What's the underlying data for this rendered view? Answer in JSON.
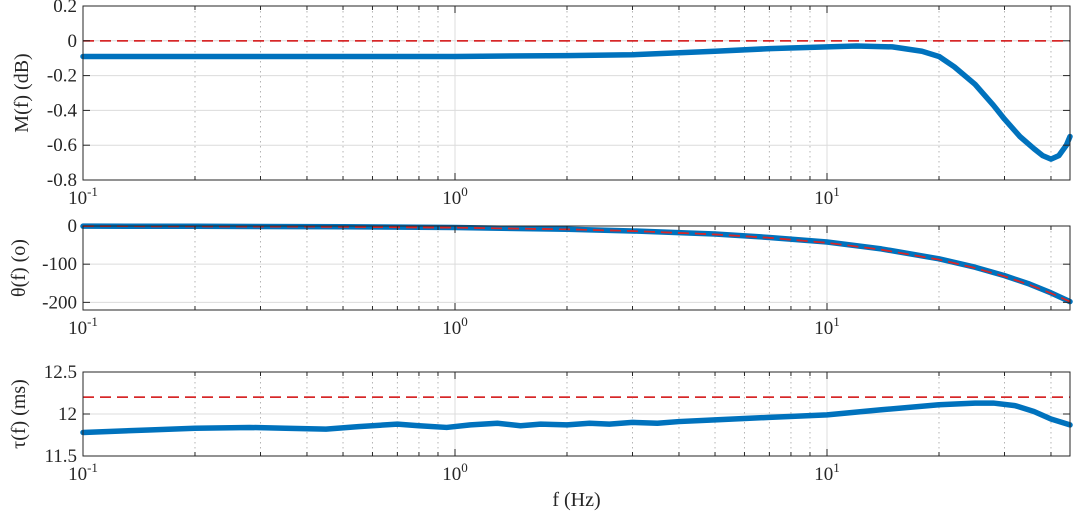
{
  "chart_data": [
    {
      "type": "line",
      "xscale": "log",
      "xlim": [
        0.1,
        45
      ],
      "ylim": [
        -0.8,
        0.2
      ],
      "ylabel": "M(f) (dB)",
      "xlabel": "",
      "grid": true,
      "x_tick_labels": [
        {
          "base": "10",
          "exp": "-1",
          "value": 0.1
        },
        {
          "base": "10",
          "exp": "0",
          "value": 1
        },
        {
          "base": "10",
          "exp": "1",
          "value": 10
        }
      ],
      "y_ticks": [
        0.2,
        0,
        -0.2,
        -0.4,
        -0.6,
        -0.8
      ],
      "y_tick_labels": [
        "0.2",
        "0",
        "-0.2",
        "-0.4",
        "-0.6",
        "-0.8"
      ],
      "series": [
        {
          "role": "measured",
          "color": "#0072BD",
          "style": "solid",
          "x": [
            0.1,
            0.2,
            0.5,
            1,
            2,
            3,
            5,
            7,
            10,
            12,
            15,
            18,
            20,
            22,
            25,
            28,
            30,
            33,
            36,
            38,
            40,
            42,
            44,
            45
          ],
          "y": [
            -0.09,
            -0.09,
            -0.09,
            -0.09,
            -0.085,
            -0.08,
            -0.06,
            -0.045,
            -0.035,
            -0.03,
            -0.035,
            -0.06,
            -0.09,
            -0.15,
            -0.25,
            -0.37,
            -0.45,
            -0.55,
            -0.62,
            -0.66,
            -0.68,
            -0.66,
            -0.6,
            -0.55
          ]
        },
        {
          "role": "reference",
          "color": "#D62728",
          "style": "dashed",
          "x": [
            0.1,
            45
          ],
          "y": [
            0,
            0
          ]
        }
      ]
    },
    {
      "type": "line",
      "xscale": "log",
      "xlim": [
        0.1,
        45
      ],
      "ylim": [
        -220,
        0
      ],
      "ylabel": "θ(f) (o)",
      "xlabel": "",
      "grid": true,
      "x_tick_labels": [
        {
          "base": "10",
          "exp": "-1",
          "value": 0.1
        },
        {
          "base": "10",
          "exp": "0",
          "value": 1
        },
        {
          "base": "10",
          "exp": "1",
          "value": 10
        }
      ],
      "y_ticks": [
        0,
        -100,
        -200
      ],
      "y_tick_labels": [
        "0",
        "-100",
        "-200"
      ],
      "series": [
        {
          "role": "measured",
          "color": "#0072BD",
          "style": "solid",
          "x": [
            0.1,
            0.2,
            0.5,
            1,
            2,
            3,
            5,
            7,
            10,
            14,
            20,
            25,
            30,
            35,
            40,
            45
          ],
          "y": [
            -0.4,
            -0.8,
            -2,
            -4,
            -8.5,
            -13,
            -21,
            -30,
            -42,
            -60,
            -86,
            -108,
            -130,
            -152,
            -175,
            -198
          ]
        },
        {
          "role": "reference",
          "color": "#D62728",
          "style": "dashed",
          "x": [
            0.1,
            0.2,
            0.5,
            1,
            2,
            3,
            5,
            7,
            10,
            14,
            20,
            25,
            30,
            35,
            40,
            45
          ],
          "y": [
            -0.44,
            -0.88,
            -2.2,
            -4.4,
            -8.8,
            -13.2,
            -22,
            -31,
            -44,
            -62,
            -88,
            -110,
            -132,
            -154,
            -176,
            -198
          ]
        }
      ]
    },
    {
      "type": "line",
      "xscale": "log",
      "xlim": [
        0.1,
        45
      ],
      "ylim": [
        11.5,
        12.5
      ],
      "ylabel": "τ(f) (ms)",
      "xlabel": "f (Hz)",
      "grid": true,
      "x_tick_labels": [
        {
          "base": "10",
          "exp": "-1",
          "value": 0.1
        },
        {
          "base": "10",
          "exp": "0",
          "value": 1
        },
        {
          "base": "10",
          "exp": "1",
          "value": 10
        }
      ],
      "y_ticks": [
        12.5,
        12,
        11.5
      ],
      "y_tick_labels": [
        "12.5",
        "12",
        "11.5"
      ],
      "series": [
        {
          "role": "measured",
          "color": "#0072BD",
          "style": "solid",
          "x": [
            0.1,
            0.15,
            0.2,
            0.28,
            0.35,
            0.45,
            0.55,
            0.7,
            0.8,
            0.95,
            1.1,
            1.3,
            1.5,
            1.7,
            2,
            2.3,
            2.6,
            3,
            3.5,
            4,
            5,
            7,
            10,
            14,
            20,
            25,
            28,
            32,
            36,
            40,
            45
          ],
          "y": [
            11.78,
            11.81,
            11.83,
            11.84,
            11.83,
            11.82,
            11.85,
            11.88,
            11.86,
            11.84,
            11.87,
            11.89,
            11.86,
            11.88,
            11.87,
            11.89,
            11.88,
            11.9,
            11.89,
            11.91,
            11.93,
            11.96,
            11.99,
            12.05,
            12.11,
            12.13,
            12.13,
            12.1,
            12.03,
            11.94,
            11.87
          ]
        },
        {
          "role": "reference",
          "color": "#D62728",
          "style": "dashed",
          "x": [
            0.1,
            45
          ],
          "y": [
            12.2,
            12.2
          ]
        }
      ]
    }
  ]
}
